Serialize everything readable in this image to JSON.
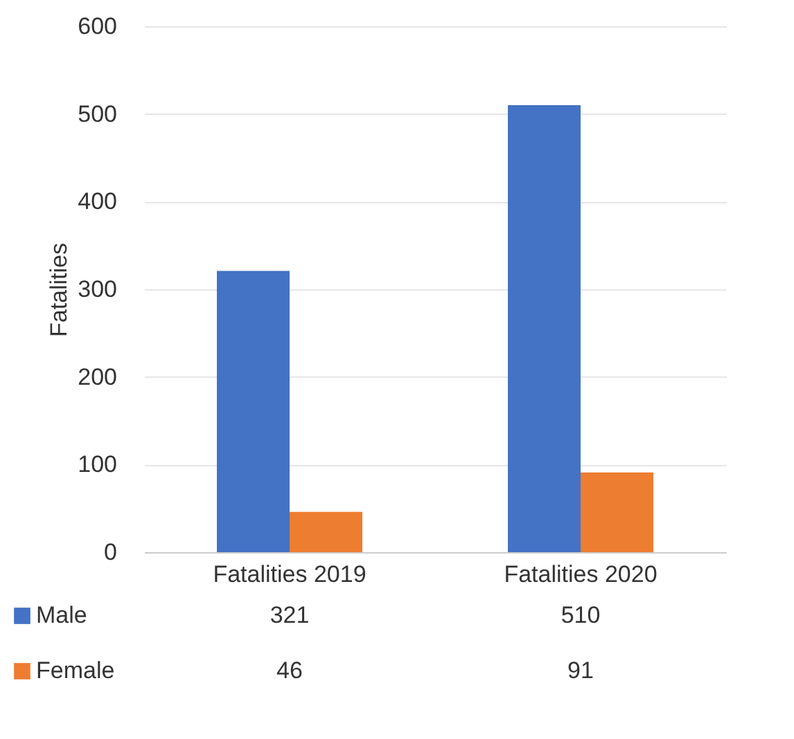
{
  "chart_data": {
    "type": "bar",
    "ylabel": "Fatalities",
    "categories": [
      "Fatalities 2019",
      "Fatalities 2020"
    ],
    "series": [
      {
        "name": "Male",
        "color": "#4472c4",
        "values": [
          321,
          510
        ]
      },
      {
        "name": "Female",
        "color": "#ed7d31",
        "values": [
          46,
          91
        ]
      }
    ],
    "ylim": [
      0,
      600
    ],
    "yticks": [
      0,
      100,
      200,
      300,
      400,
      500,
      600
    ],
    "grid": "y",
    "legend": "bottom",
    "data_labels": true
  }
}
